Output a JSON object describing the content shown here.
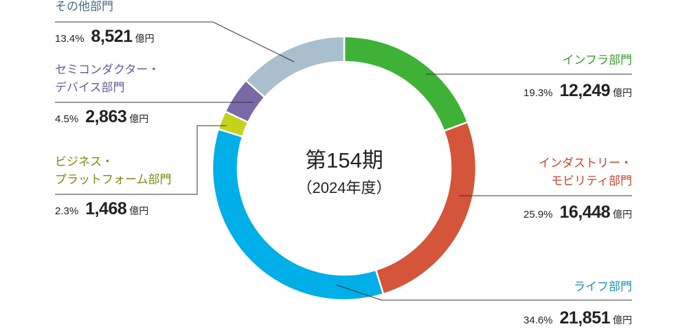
{
  "chart_data": {
    "type": "donut",
    "center_title": "第154期",
    "center_subtitle": "（2024年度）",
    "categories": [
      "インフラ部門",
      "インダストリー・\nモビリティ部門",
      "ライフ部門",
      "ビジネス・\nプラットフォーム部門",
      "セミコンダクター・\nデバイス部門",
      "その他部門"
    ],
    "values": [
      19.3,
      25.9,
      34.6,
      2.3,
      4.5,
      13.4
    ],
    "value_labels": [
      "19.3%",
      "25.9%",
      "34.6%",
      "2.3%",
      "4.5%",
      "13.4%"
    ],
    "amounts": [
      12249,
      16448,
      21851,
      1468,
      2863,
      8521
    ],
    "amount_labels": [
      "12,249",
      "16,448",
      "21,851",
      "1,468",
      "2,863",
      "8,521"
    ],
    "unit": "億円",
    "colors": [
      "#3db236",
      "#d4553a",
      "#00aee8",
      "#c5d21b",
      "#7b69a7",
      "#aabfcd"
    ],
    "label_colors": [
      "#3a9c2f",
      "#c8472d",
      "#1a8fc2",
      "#7a8a10",
      "#6a5a9c",
      "#4a6a82"
    ]
  }
}
